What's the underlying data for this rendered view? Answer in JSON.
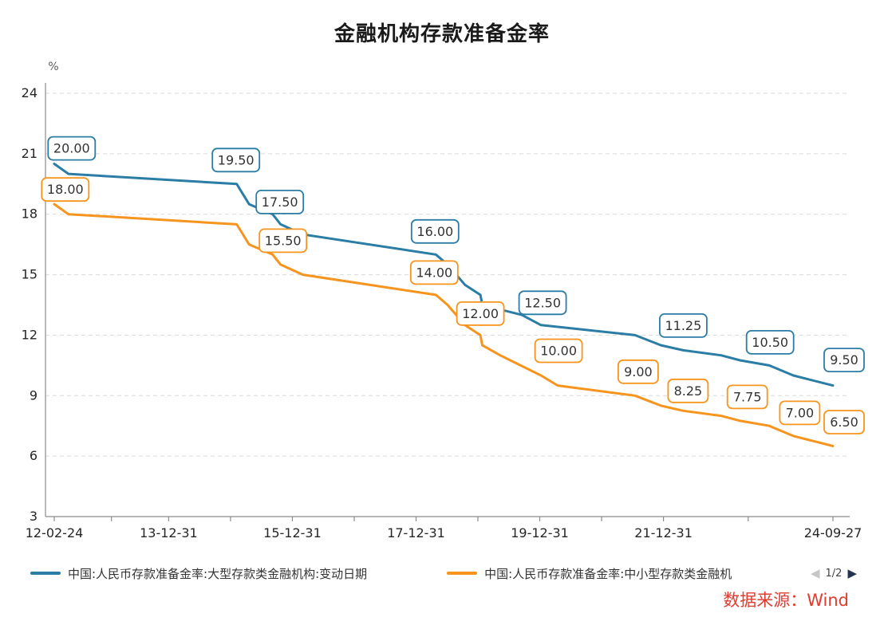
{
  "chart_data": {
    "type": "line",
    "title": "金融机构存款准备金率",
    "ylabel": "%",
    "ylim": [
      3,
      24
    ],
    "yticks": [
      3,
      6,
      9,
      12,
      15,
      18,
      21,
      24
    ],
    "grid": "dashed-horizontal",
    "legend_position": "bottom",
    "x_axis": {
      "range": [
        2012.15,
        2024.74
      ],
      "ticks": [
        {
          "pos": 2012.15,
          "label": "12-02-24"
        },
        {
          "pos": 2014.0,
          "label": "13-12-31"
        },
        {
          "pos": 2016.0,
          "label": "15-12-31"
        },
        {
          "pos": 2018.0,
          "label": "17-12-31"
        },
        {
          "pos": 2020.0,
          "label": "19-12-31"
        },
        {
          "pos": 2022.0,
          "label": "21-12-31"
        },
        {
          "pos": 2024.74,
          "label": "24-09-27"
        }
      ]
    },
    "series": [
      {
        "name": "中国:人民币存款准备金率:大型存款类金融机构:变动日期",
        "color": "#2b7da6",
        "points": [
          [
            2012.15,
            20.5
          ],
          [
            2012.38,
            20.0
          ],
          [
            2015.1,
            19.5
          ],
          [
            2015.3,
            18.5
          ],
          [
            2015.68,
            18.0
          ],
          [
            2015.81,
            17.5
          ],
          [
            2016.17,
            17.0
          ],
          [
            2018.32,
            16.0
          ],
          [
            2018.51,
            15.5
          ],
          [
            2018.79,
            14.5
          ],
          [
            2019.04,
            14.0
          ],
          [
            2019.07,
            13.5
          ],
          [
            2019.71,
            13.0
          ],
          [
            2020.02,
            12.5
          ],
          [
            2021.54,
            12.0
          ],
          [
            2021.96,
            11.5
          ],
          [
            2022.32,
            11.25
          ],
          [
            2022.93,
            11.0
          ],
          [
            2023.24,
            10.75
          ],
          [
            2023.71,
            10.5
          ],
          [
            2024.1,
            10.0
          ],
          [
            2024.74,
            9.5
          ]
        ],
        "labels": [
          {
            "text": "20.00",
            "x": 2012.38,
            "y": 20.0,
            "dx": 4,
            "dy": -32
          },
          {
            "text": "19.50",
            "x": 2015.1,
            "y": 19.5,
            "dx": -1,
            "dy": -30
          },
          {
            "text": "17.50",
            "x": 2015.81,
            "y": 17.5,
            "dx": -1,
            "dy": -28
          },
          {
            "text": "16.00",
            "x": 2018.32,
            "y": 16.0,
            "dx": -1,
            "dy": -29
          },
          {
            "text": "12.50",
            "x": 2020.02,
            "y": 12.5,
            "dx": 2,
            "dy": -28
          },
          {
            "text": "11.25",
            "x": 2022.32,
            "y": 11.25,
            "dx": 0,
            "dy": -31
          },
          {
            "text": "10.50",
            "x": 2023.71,
            "y": 10.5,
            "dx": 1,
            "dy": -29
          },
          {
            "text": "9.50",
            "x": 2024.74,
            "y": 9.5,
            "dx": 14,
            "dy": -32
          }
        ]
      },
      {
        "name": "中国:人民币存款准备金率:中小型存款类金融机",
        "color": "#f7941d",
        "points": [
          [
            2012.15,
            18.5
          ],
          [
            2012.38,
            18.0
          ],
          [
            2015.1,
            17.5
          ],
          [
            2015.3,
            16.5
          ],
          [
            2015.68,
            16.0
          ],
          [
            2015.81,
            15.5
          ],
          [
            2016.17,
            15.0
          ],
          [
            2018.32,
            14.0
          ],
          [
            2018.51,
            13.5
          ],
          [
            2018.79,
            12.5
          ],
          [
            2019.04,
            12.0
          ],
          [
            2019.07,
            11.5
          ],
          [
            2019.36,
            11.0
          ],
          [
            2020.02,
            10.0
          ],
          [
            2020.29,
            9.5
          ],
          [
            2021.54,
            9.0
          ],
          [
            2021.96,
            8.5
          ],
          [
            2022.32,
            8.25
          ],
          [
            2022.93,
            8.0
          ],
          [
            2023.24,
            7.75
          ],
          [
            2023.71,
            7.5
          ],
          [
            2024.1,
            7.0
          ],
          [
            2024.74,
            6.5
          ]
        ],
        "labels": [
          {
            "text": "18.00",
            "x": 2012.38,
            "y": 18.0,
            "dx": -4,
            "dy": -31
          },
          {
            "text": "15.50",
            "x": 2015.81,
            "y": 15.5,
            "dx": 3,
            "dy": -30
          },
          {
            "text": "14.00",
            "x": 2018.32,
            "y": 14.0,
            "dx": -2,
            "dy": -28
          },
          {
            "text": "12.00",
            "x": 2019.04,
            "y": 12.0,
            "dx": 0,
            "dy": -27
          },
          {
            "text": "10.00",
            "x": 2020.02,
            "y": 10.0,
            "dx": 22,
            "dy": -31
          },
          {
            "text": "9.00",
            "x": 2021.54,
            "y": 9.0,
            "dx": 4,
            "dy": -30
          },
          {
            "text": "8.25",
            "x": 2022.32,
            "y": 8.25,
            "dx": 6,
            "dy": -25
          },
          {
            "text": "7.75",
            "x": 2023.24,
            "y": 7.75,
            "dx": 9,
            "dy": -30
          },
          {
            "text": "7.00",
            "x": 2024.1,
            "y": 7.0,
            "dx": 8,
            "dy": -29
          },
          {
            "text": "6.50",
            "x": 2024.74,
            "y": 6.5,
            "dx": 14,
            "dy": -30
          }
        ]
      }
    ]
  },
  "legend": {
    "pagination": "1/2",
    "prev_icon": "◀",
    "next_icon": "▶"
  },
  "footer": {
    "source": "数据来源：Wind"
  },
  "colors": {
    "large_institutions_line": "#2b7da6",
    "small_medium_institutions_line": "#f7941d",
    "source_text": "#e03c31",
    "grid": "#d9d9d9",
    "axis": "#8c8c8c"
  }
}
